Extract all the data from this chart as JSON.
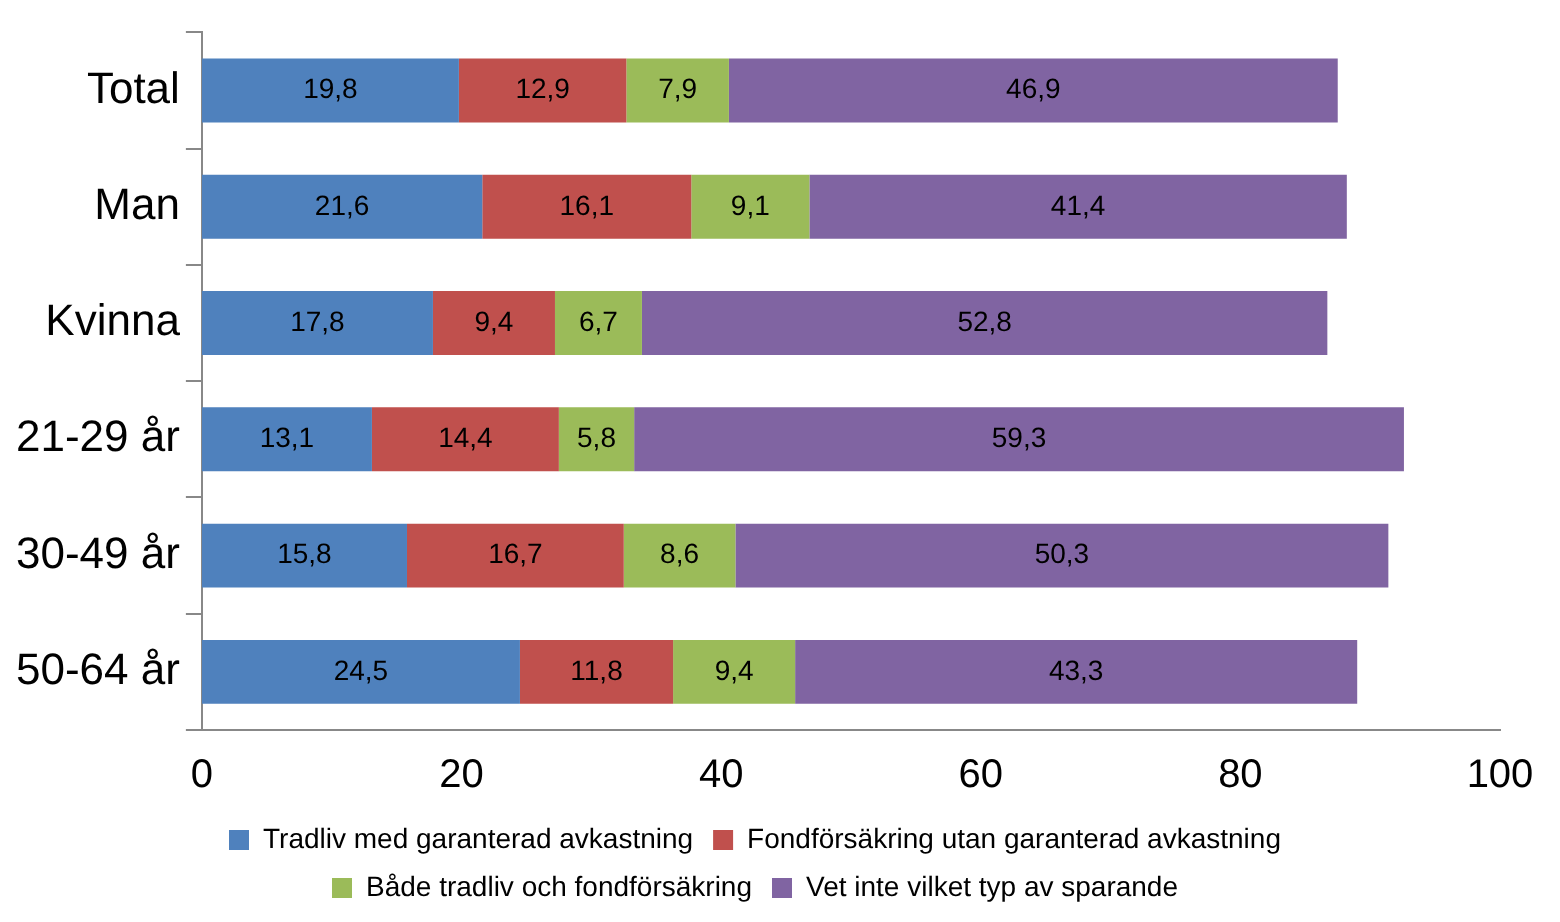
{
  "chart_data": {
    "type": "bar",
    "orientation": "horizontal",
    "stacked": true,
    "categories": [
      "Total",
      "Man",
      "Kvinna",
      "21-29 år",
      "30-49 år",
      "50-64 år"
    ],
    "series": [
      {
        "name": "Tradliv med garanterad avkastning",
        "color": "#4f81bd",
        "values": [
          19.8,
          21.6,
          17.8,
          13.1,
          15.8,
          24.5
        ],
        "value_labels": [
          "19,8",
          "21,6",
          "17,8",
          "13,1",
          "15,8",
          "24,5"
        ]
      },
      {
        "name": "Fondförsäkring utan garanterad avkastning",
        "color": "#c0504d",
        "values": [
          12.9,
          16.1,
          9.4,
          14.4,
          16.7,
          11.8
        ],
        "value_labels": [
          "12,9",
          "16,1",
          "9,4",
          "14,4",
          "16,7",
          "11,8"
        ]
      },
      {
        "name": "Både tradliv och fondförsäkring",
        "color": "#9bbb59",
        "values": [
          7.9,
          9.1,
          6.7,
          5.8,
          8.6,
          9.4
        ],
        "value_labels": [
          "7,9",
          "9,1",
          "6,7",
          "5,8",
          "8,6",
          "9,4"
        ]
      },
      {
        "name": "Vet inte vilket typ av sparande",
        "color": "#8064a2",
        "values": [
          46.9,
          41.4,
          52.8,
          59.3,
          50.3,
          43.3
        ],
        "value_labels": [
          "46,9",
          "41,4",
          "52,8",
          "59,3",
          "50,3",
          "43,3"
        ]
      }
    ],
    "xlim": [
      0,
      100
    ],
    "xticks": [
      0,
      20,
      40,
      60,
      80,
      100
    ],
    "grid": false,
    "legend": "bottom"
  }
}
